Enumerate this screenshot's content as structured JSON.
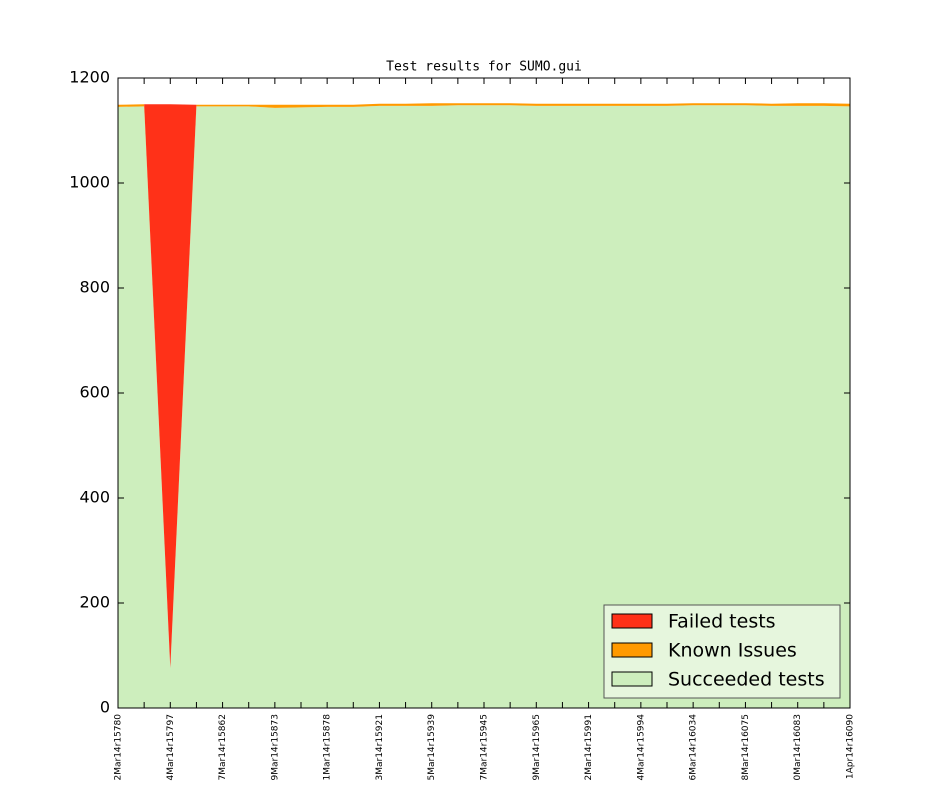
{
  "chart_data": {
    "type": "stacked-area",
    "title": "Test results for SUMO.gui",
    "categories": [
      "2Mar14r15780",
      null,
      "4Mar14r15797",
      null,
      "7Mar14r15862",
      null,
      "9Mar14r15873",
      null,
      "1Mar14r15878",
      null,
      "3Mar14r15921",
      null,
      "5Mar14r15939",
      null,
      "7Mar14r15945",
      null,
      "9Mar14r15965",
      null,
      "2Mar14r15991",
      null,
      "4Mar14r15994",
      null,
      "6Mar14r16034",
      null,
      "8Mar14r16075",
      null,
      "0Mar14r16083",
      null,
      "1Apr14r16090"
    ],
    "series": [
      {
        "name": "Failed tests",
        "color": "#ff3118",
        "values": [
          0,
          0,
          1074,
          0,
          0,
          0,
          0,
          0,
          0,
          0,
          0,
          0,
          0,
          0,
          0,
          0,
          0,
          0,
          0,
          0,
          0,
          0,
          0,
          0,
          0,
          0,
          0,
          0,
          0
        ]
      },
      {
        "name": "Known Issues",
        "color": "#ff9a00",
        "values": [
          4,
          4,
          0,
          3,
          3,
          3,
          6,
          5,
          4,
          4,
          4,
          4,
          5,
          4,
          4,
          4,
          4,
          4,
          4,
          4,
          4,
          4,
          4,
          4,
          4,
          4,
          5,
          5,
          5
        ]
      },
      {
        "name": "Succeeded tests",
        "color": "#cdeebd",
        "values": [
          1145,
          1146,
          76,
          1146,
          1146,
          1146,
          1143,
          1144,
          1145,
          1145,
          1147,
          1147,
          1147,
          1148,
          1148,
          1148,
          1147,
          1147,
          1147,
          1147,
          1147,
          1147,
          1148,
          1148,
          1148,
          1147,
          1147,
          1147,
          1146
        ]
      }
    ],
    "ylim": [
      0,
      1200
    ],
    "yticks": [
      0,
      200,
      400,
      600,
      800,
      1000,
      1200
    ],
    "legend": "lower right"
  }
}
